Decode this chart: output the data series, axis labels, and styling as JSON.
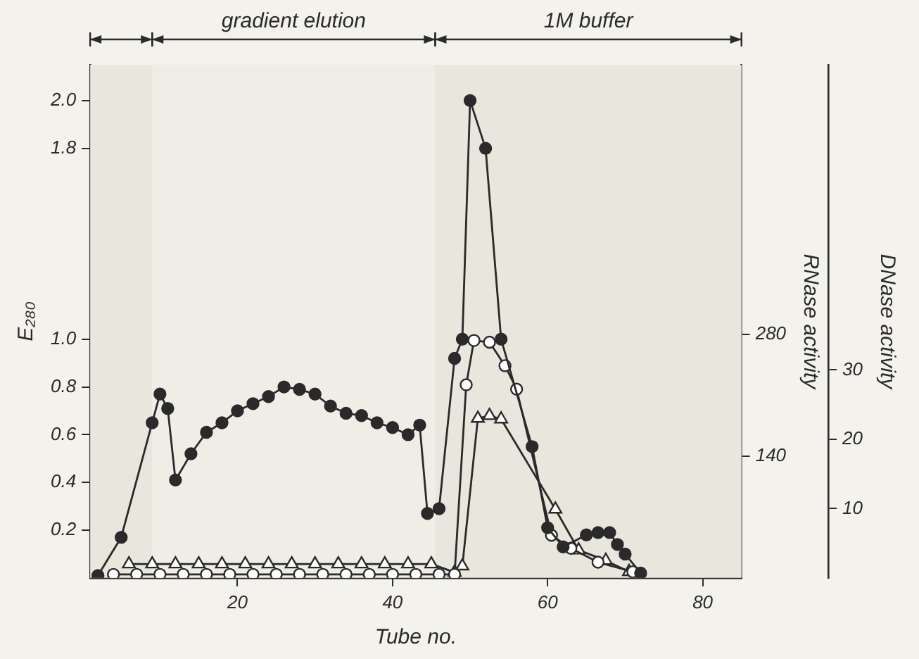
{
  "chart_data": {
    "type": "line",
    "xlabel": "Tube no.",
    "ylabel": "E₂₈₀",
    "y2label": "RNase activity",
    "y3label": "DNase activity",
    "xlim": [
      1,
      85
    ],
    "xticks": [
      20,
      40,
      60,
      80
    ],
    "ylim": [
      0,
      2.15
    ],
    "yticks": [
      0.2,
      0.4,
      0.6,
      0.8,
      {
        "value": 1,
        "label": "1.0"
      },
      1.8,
      {
        "value": 2,
        "label": "2.0"
      }
    ],
    "y2lim": [
      0,
      590
    ],
    "y2ticks": [
      140,
      280
    ],
    "y3lim": [
      0,
      74
    ],
    "y3ticks": [
      10,
      20,
      30
    ],
    "grid": false,
    "legend": false,
    "line_style": "solid",
    "bands": [
      {
        "axis": "x",
        "from": 1,
        "to": 9,
        "label": null,
        "color": "#e9e6dd"
      },
      {
        "axis": "x",
        "from": 9,
        "to": 45.5,
        "label": "gradient elution",
        "color": "#efede6"
      },
      {
        "axis": "x",
        "from": 45.5,
        "to": 85,
        "label": "1M buffer",
        "color": "#e9e6dd"
      }
    ],
    "series": [
      {
        "color": "#2a2a2a",
        "marker": "circle",
        "x": [
          2,
          5,
          9,
          10,
          11,
          12,
          14,
          16,
          18,
          20,
          22,
          24,
          26,
          28,
          30,
          32,
          34,
          36,
          38,
          40,
          42,
          43.5,
          44.5,
          46,
          48,
          49,
          50,
          52,
          54,
          58,
          60,
          62,
          65,
          66.5,
          68,
          69,
          70,
          72
        ],
        "values": [
          0.01,
          0.17,
          0.65,
          0.77,
          0.71,
          0.41,
          0.52,
          0.61,
          0.65,
          0.7,
          0.73,
          0.76,
          0.8,
          0.79,
          0.77,
          0.72,
          0.69,
          0.68,
          0.65,
          0.63,
          0.6,
          0.64,
          0.27,
          0.29,
          0.92,
          1.0,
          2.0,
          1.8,
          1.0,
          0.55,
          0.21,
          0.13,
          0.18,
          0.19,
          0.19,
          0.14,
          0.1,
          0.02
        ]
      },
      {
        "color": "#2a2a2a",
        "marker": "circle",
        "axis": "y2",
        "x": [
          4,
          7,
          10,
          13,
          16,
          19,
          22,
          25,
          28,
          31,
          34,
          37,
          40,
          43,
          46,
          48,
          49.5,
          50.5,
          52.5,
          54.5,
          56,
          60.5,
          63,
          66.5,
          71
        ],
        "values": [
          4,
          4,
          4,
          4,
          4,
          4,
          4,
          4,
          4,
          4,
          4,
          4,
          4,
          4,
          4,
          4,
          222,
          273,
          271,
          244,
          217,
          49,
          34,
          18,
          7
        ]
      },
      {
        "color": "#2a2a2a",
        "marker": "triangle",
        "axis": "y3",
        "x": [
          6,
          9,
          12,
          15,
          18,
          21,
          24,
          27,
          30,
          33,
          36,
          39,
          42,
          45,
          48,
          49,
          51,
          52.5,
          54,
          61,
          64,
          67.5,
          70.5
        ],
        "values": [
          2,
          2,
          2,
          2,
          2,
          2,
          2,
          2,
          2,
          2,
          2,
          2,
          2,
          2,
          0.8,
          1.7,
          23,
          23.4,
          22.9,
          9.9,
          4.0,
          2.5,
          0.9
        ]
      }
    ]
  }
}
